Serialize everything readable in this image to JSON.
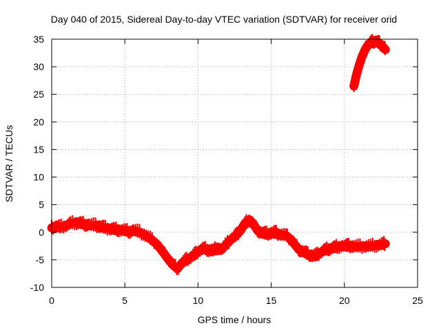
{
  "chart_data": {
    "type": "line",
    "title": "Day 040 of 2015, Sidereal Day-to-day VTEC variation (SDTVAR) for receiver orid",
    "xlabel": "GPS time / hours",
    "ylabel": "SDTVAR / TECUs",
    "xlim": [
      0,
      25
    ],
    "ylim": [
      -10,
      35
    ],
    "xticks": [
      0,
      5,
      10,
      15,
      20,
      25
    ],
    "yticks": [
      -10,
      -5,
      0,
      5,
      10,
      15,
      20,
      25,
      30,
      35
    ],
    "grid": true,
    "series_color": "#ff0000",
    "series": [
      {
        "name": "SDTVAR",
        "band_width": 1.6,
        "x": [
          0,
          0.3,
          0.6,
          1.0,
          1.3,
          1.7,
          2.0,
          2.3,
          2.6,
          3.0,
          3.3,
          3.6,
          4.0,
          4.3,
          4.6,
          5.0,
          5.3,
          5.6,
          6.0,
          6.4,
          6.8,
          7.2,
          7.6,
          8.0,
          8.3,
          8.6,
          8.9,
          9.2,
          9.5,
          9.8,
          10.1,
          10.4,
          10.7,
          11.0,
          11.3,
          11.6,
          12.0,
          12.3,
          12.6,
          12.9,
          13.2,
          13.5,
          13.8,
          14.1,
          14.4,
          14.7,
          15.0,
          15.3,
          15.6,
          16.0,
          16.3,
          16.6,
          16.9,
          17.2,
          17.5,
          17.8,
          18.1,
          18.4,
          18.7,
          19.0,
          19.3,
          19.6,
          20.0,
          20.3,
          20.6,
          21.0,
          21.4,
          21.8,
          22.2,
          22.6,
          22.8
        ],
        "y": [
          0.8,
          1.0,
          0.9,
          1.2,
          1.6,
          1.7,
          1.6,
          1.4,
          1.3,
          1.2,
          1.0,
          0.8,
          0.6,
          0.5,
          0.4,
          0.3,
          0.1,
          0.3,
          0.0,
          -0.6,
          -1.3,
          -2.2,
          -3.6,
          -5.0,
          -6.0,
          -6.6,
          -5.6,
          -5.0,
          -4.6,
          -4.0,
          -3.3,
          -3.0,
          -3.2,
          -3.4,
          -2.8,
          -3.2,
          -2.0,
          -1.2,
          -0.6,
          0.3,
          1.6,
          2.2,
          1.4,
          0.2,
          -0.2,
          -0.3,
          -0.2,
          -0.1,
          -0.4,
          -0.6,
          -1.2,
          -2.2,
          -3.2,
          -3.6,
          -4.0,
          -4.3,
          -4.2,
          -3.6,
          -3.2,
          -3.0,
          -2.8,
          -2.6,
          -2.5,
          -2.5,
          -2.6,
          -2.6,
          -2.6,
          -2.5,
          -2.4,
          -2.2,
          -2.1
        ],
        "x2": [
          20.65,
          20.8,
          21.0,
          21.2,
          21.4,
          21.6,
          21.8,
          22.0,
          22.2,
          22.4,
          22.6,
          22.8
        ],
        "y2": [
          26.5,
          28.3,
          30.2,
          31.8,
          33.0,
          33.9,
          34.4,
          34.6,
          34.5,
          34.2,
          33.7,
          33.1
        ]
      }
    ]
  }
}
